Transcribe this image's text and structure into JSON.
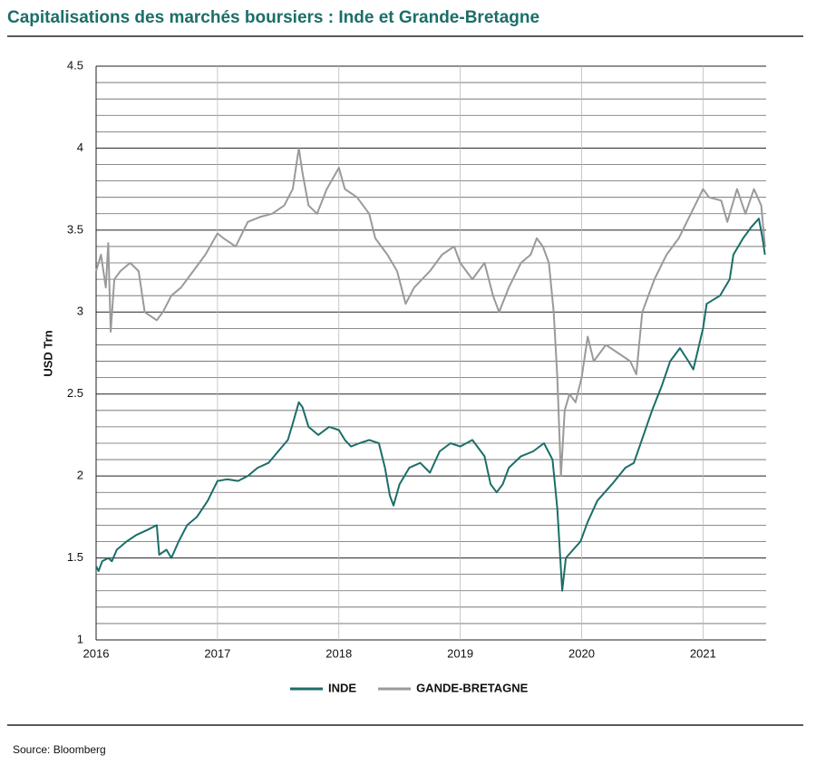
{
  "chart_data": {
    "type": "line",
    "title": "Capitalisations des marchés boursiers : Inde et Grande-Bretagne",
    "y_label": "USD Trn",
    "source": "Source: Bloomberg",
    "xlim": [
      2016,
      2021.52
    ],
    "xticks": [
      2016,
      2017,
      2018,
      2019,
      2020,
      2021
    ],
    "ylim": [
      1,
      4.5
    ],
    "yticks": [
      1,
      1.5,
      2,
      2.5,
      3,
      3.5,
      4,
      4.5
    ],
    "y_grid": [
      1.1,
      1.2,
      1.3,
      1.4,
      1.6,
      1.7,
      1.8,
      1.9,
      2.1,
      2.2,
      2.3,
      2.4,
      2.6,
      2.7,
      2.8,
      2.9,
      3.1,
      3.2,
      3.3,
      3.4,
      3.6,
      3.7,
      3.8,
      3.9,
      4.1,
      4.2,
      4.3,
      4.4
    ],
    "grid": true,
    "legend": "bottom",
    "series": [
      {
        "name": "INDE",
        "color": "#1b6e69",
        "x": [
          2016.0,
          2016.02,
          2016.05,
          2016.1,
          2016.13,
          2016.17,
          2016.25,
          2016.33,
          2016.42,
          2016.5,
          2016.52,
          2016.58,
          2016.62,
          2016.68,
          2016.75,
          2016.83,
          2016.92,
          2017.0,
          2017.08,
          2017.17,
          2017.25,
          2017.33,
          2017.42,
          2017.5,
          2017.58,
          2017.62,
          2017.67,
          2017.7,
          2017.75,
          2017.83,
          2017.92,
          2018.0,
          2018.05,
          2018.1,
          2018.17,
          2018.25,
          2018.33,
          2018.38,
          2018.42,
          2018.45,
          2018.5,
          2018.58,
          2018.67,
          2018.75,
          2018.83,
          2018.92,
          2019.0,
          2019.1,
          2019.2,
          2019.25,
          2019.3,
          2019.35,
          2019.4,
          2019.5,
          2019.6,
          2019.69,
          2019.76,
          2019.8,
          2019.84,
          2019.87,
          2019.93,
          2019.99,
          2020.05,
          2020.13,
          2020.25,
          2020.36,
          2020.43,
          2020.51,
          2020.58,
          2020.66,
          2020.73,
          2020.81,
          2020.88,
          2020.92,
          2021.0,
          2021.03,
          2021.14,
          2021.22,
          2021.25,
          2021.33,
          2021.4,
          2021.46,
          2021.49,
          2021.51
        ],
        "values": [
          1.45,
          1.42,
          1.48,
          1.5,
          1.48,
          1.55,
          1.6,
          1.64,
          1.67,
          1.7,
          1.52,
          1.55,
          1.5,
          1.6,
          1.7,
          1.75,
          1.85,
          1.97,
          1.98,
          1.97,
          2.0,
          2.05,
          2.08,
          2.15,
          2.22,
          2.32,
          2.45,
          2.42,
          2.3,
          2.25,
          2.3,
          2.28,
          2.22,
          2.18,
          2.2,
          2.22,
          2.2,
          2.05,
          1.88,
          1.82,
          1.95,
          2.05,
          2.08,
          2.02,
          2.15,
          2.2,
          2.18,
          2.22,
          2.12,
          1.95,
          1.9,
          1.95,
          2.05,
          2.12,
          2.15,
          2.2,
          2.1,
          1.8,
          1.3,
          1.5,
          1.55,
          1.6,
          1.72,
          1.85,
          1.95,
          2.05,
          2.08,
          2.25,
          2.4,
          2.55,
          2.7,
          2.78,
          2.7,
          2.65,
          2.9,
          3.05,
          3.1,
          3.2,
          3.35,
          3.45,
          3.52,
          3.57,
          3.45,
          3.35
        ]
      },
      {
        "name": "GANDE-BRETAGNE",
        "color": "#9a9a9a",
        "x": [
          2016.0,
          2016.04,
          2016.08,
          2016.1,
          2016.12,
          2016.15,
          2016.2,
          2016.28,
          2016.35,
          2016.4,
          2016.5,
          2016.55,
          2016.62,
          2016.7,
          2016.8,
          2016.9,
          2017.0,
          2017.05,
          2017.15,
          2017.25,
          2017.35,
          2017.45,
          2017.55,
          2017.62,
          2017.67,
          2017.7,
          2017.75,
          2017.82,
          2017.9,
          2018.0,
          2018.05,
          2018.15,
          2018.25,
          2018.3,
          2018.4,
          2018.48,
          2018.55,
          2018.62,
          2018.75,
          2018.85,
          2018.95,
          2019.0,
          2019.1,
          2019.2,
          2019.27,
          2019.32,
          2019.4,
          2019.5,
          2019.58,
          2019.63,
          2019.68,
          2019.73,
          2019.77,
          2019.8,
          2019.83,
          2019.86,
          2019.9,
          2019.95,
          2020.0,
          2020.05,
          2020.1,
          2020.2,
          2020.3,
          2020.4,
          2020.45,
          2020.5,
          2020.6,
          2020.7,
          2020.8,
          2020.9,
          2021.0,
          2021.05,
          2021.15,
          2021.2,
          2021.28,
          2021.35,
          2021.42,
          2021.48,
          2021.51
        ],
        "values": [
          3.25,
          3.35,
          3.15,
          3.42,
          2.88,
          3.2,
          3.25,
          3.3,
          3.25,
          3.0,
          2.95,
          3.0,
          3.1,
          3.15,
          3.25,
          3.35,
          3.48,
          3.45,
          3.4,
          3.55,
          3.58,
          3.6,
          3.65,
          3.75,
          4.0,
          3.85,
          3.65,
          3.6,
          3.75,
          3.88,
          3.75,
          3.7,
          3.6,
          3.45,
          3.35,
          3.25,
          3.05,
          3.15,
          3.25,
          3.35,
          3.4,
          3.3,
          3.2,
          3.3,
          3.1,
          3.0,
          3.15,
          3.3,
          3.35,
          3.45,
          3.4,
          3.3,
          3.0,
          2.6,
          2.0,
          2.4,
          2.5,
          2.45,
          2.6,
          2.85,
          2.7,
          2.8,
          2.75,
          2.7,
          2.62,
          3.0,
          3.2,
          3.35,
          3.45,
          3.6,
          3.75,
          3.7,
          3.68,
          3.55,
          3.75,
          3.6,
          3.75,
          3.65,
          3.4
        ]
      }
    ]
  }
}
